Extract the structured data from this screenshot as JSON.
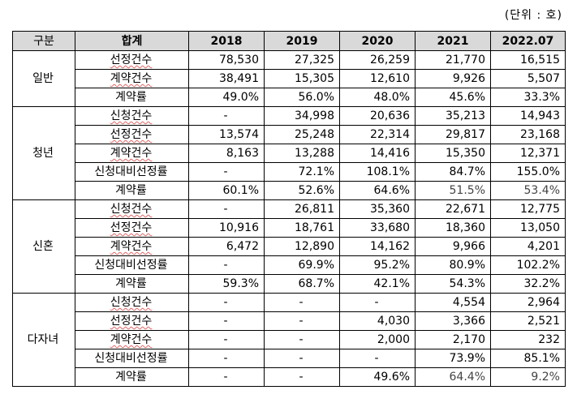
{
  "unit_note": "(단위 : 호)",
  "header": {
    "category": "구분",
    "item": "합계",
    "years": [
      "2018",
      "2019",
      "2020",
      "2021",
      "2022.07"
    ]
  },
  "groups": [
    {
      "name": "일반",
      "rows": [
        {
          "label": "선정건수",
          "squiggle": true,
          "values": [
            "78,530",
            "27,325",
            "26,259",
            "21,770",
            "16,515"
          ]
        },
        {
          "label": "계약건수",
          "squiggle": true,
          "values": [
            "38,491",
            "15,305",
            "12,610",
            "9,926",
            "5,507"
          ]
        },
        {
          "label": "계약률",
          "squiggle": false,
          "values": [
            "49.0%",
            "56.0%",
            "48.0%",
            "45.6%",
            "33.3%"
          ]
        }
      ]
    },
    {
      "name": "청년",
      "rows": [
        {
          "label": "신청건수",
          "squiggle": true,
          "values": [
            "-",
            "34,998",
            "20,636",
            "35,213",
            "14,943"
          ]
        },
        {
          "label": "선정건수",
          "squiggle": true,
          "values": [
            "13,574",
            "25,248",
            "22,314",
            "29,817",
            "23,168"
          ]
        },
        {
          "label": "계약건수",
          "squiggle": true,
          "values": [
            "8,163",
            "13,288",
            "14,416",
            "15,350",
            "12,371"
          ]
        },
        {
          "label": "신청대비선정률",
          "squiggle": false,
          "values": [
            "-",
            "72.1%",
            "108.1%",
            "84.7%",
            "155.0%"
          ]
        },
        {
          "label": "계약률",
          "squiggle": false,
          "values": [
            "60.1%",
            "52.6%",
            "64.6%",
            "51.5%",
            "53.4%"
          ]
        }
      ]
    },
    {
      "name": "신혼",
      "rows": [
        {
          "label": "신청건수",
          "squiggle": true,
          "values": [
            "-",
            "26,811",
            "35,360",
            "22,671",
            "12,775"
          ]
        },
        {
          "label": "선정건수",
          "squiggle": true,
          "values": [
            "10,916",
            "18,761",
            "33,680",
            "18,360",
            "13,050"
          ]
        },
        {
          "label": "계약건수",
          "squiggle": true,
          "values": [
            "6,472",
            "12,890",
            "14,162",
            "9,966",
            "4,201"
          ]
        },
        {
          "label": "신청대비선정률",
          "squiggle": false,
          "values": [
            "-",
            "69.9%",
            "95.2%",
            "80.9%",
            "102.2%"
          ]
        },
        {
          "label": "계약률",
          "squiggle": false,
          "values": [
            "59.3%",
            "68.7%",
            "42.1%",
            "54.3%",
            "32.2%"
          ]
        }
      ]
    },
    {
      "name": "다자녀",
      "rows": [
        {
          "label": "신청건수",
          "squiggle": true,
          "values": [
            "-",
            "-",
            "-",
            "4,554",
            "2,964"
          ]
        },
        {
          "label": "선정건수",
          "squiggle": true,
          "values": [
            "-",
            "-",
            "4,030",
            "3,366",
            "2,521"
          ]
        },
        {
          "label": "계약건수",
          "squiggle": true,
          "values": [
            "-",
            "-",
            "2,000",
            "2,170",
            "232"
          ]
        },
        {
          "label": "신청대비선정률",
          "squiggle": false,
          "values": [
            "-",
            "-",
            "-",
            "73.9%",
            "85.1%"
          ]
        },
        {
          "label": "계약률",
          "squiggle": false,
          "values": [
            "-",
            "-",
            "49.6%",
            "64.4%",
            "9.2%"
          ]
        }
      ]
    }
  ]
}
